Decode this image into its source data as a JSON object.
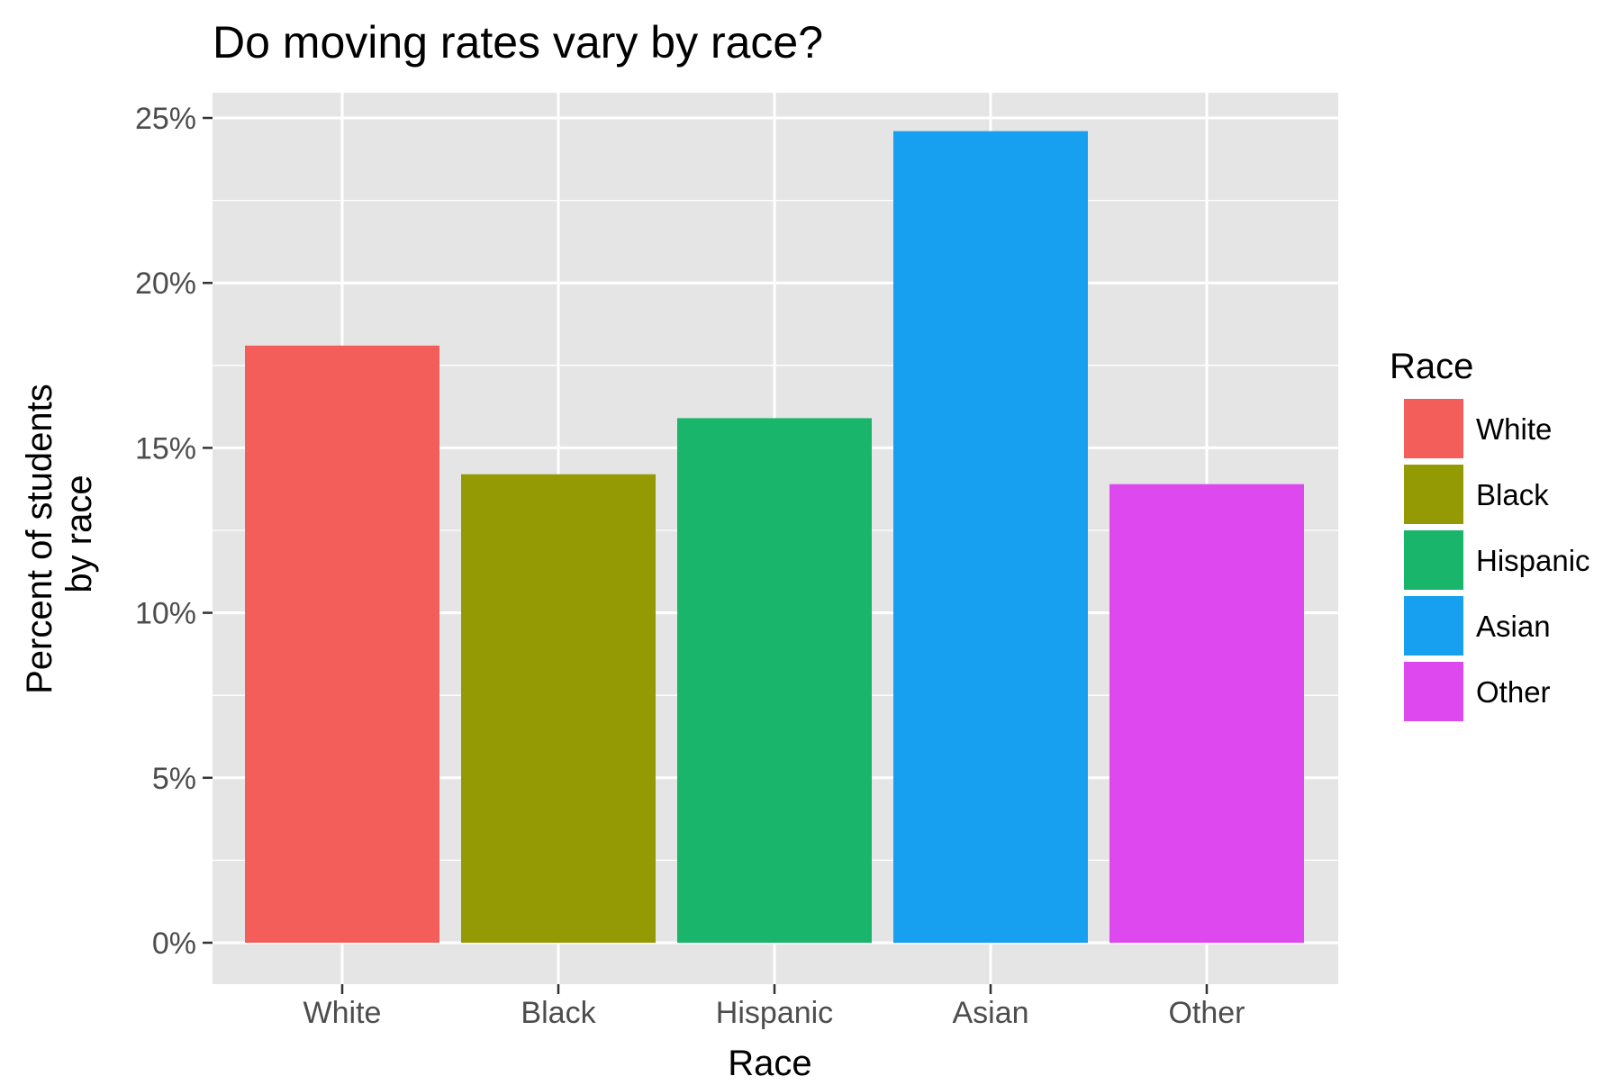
{
  "chart_data": {
    "type": "bar",
    "title": "Do moving rates vary by race?",
    "xlabel": "Race",
    "ylabel_lines": [
      "Percent of students",
      "by race"
    ],
    "categories": [
      "White",
      "Black",
      "Hispanic",
      "Asian",
      "Other"
    ],
    "values": [
      18.1,
      14.2,
      15.9,
      24.6,
      13.9
    ],
    "unit": "%",
    "ylim": [
      0,
      25
    ],
    "y_ticks": [
      0,
      5,
      10,
      15,
      20,
      25
    ],
    "y_tick_labels": [
      "0%",
      "5%",
      "10%",
      "15%",
      "20%",
      "25%"
    ],
    "colors": [
      "#F35E5A",
      "#939A04",
      "#19B56B",
      "#17A0F0",
      "#DD49EE"
    ],
    "panel_background": "#E5E5E5",
    "grid": true,
    "legend": {
      "title": "Race",
      "position": "right",
      "entries": [
        "White",
        "Black",
        "Hispanic",
        "Asian",
        "Other"
      ]
    }
  }
}
